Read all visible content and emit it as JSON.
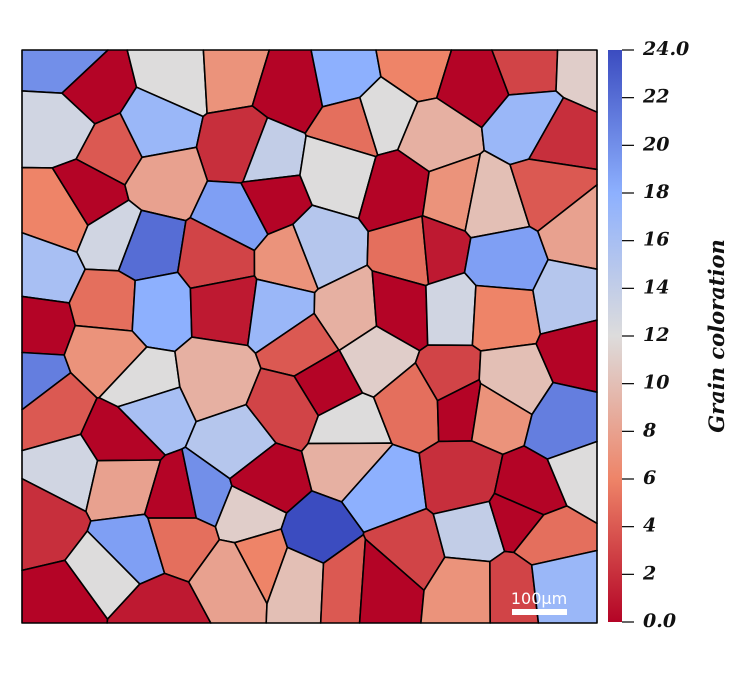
{
  "chart_data": {
    "type": "grain-map",
    "colorbar_title": "Grain coloration",
    "clim": [
      0,
      24
    ],
    "cticks": [
      {
        "value": 0,
        "label": "0.0"
      },
      2,
      4,
      6,
      8,
      10,
      12,
      14,
      16,
      18,
      20,
      22,
      {
        "value": 24,
        "label": "24.0"
      }
    ],
    "colors": [
      "#b40426",
      "#ee8468",
      "#dddcdc",
      "#8db0fe",
      "#3b4cc0"
    ],
    "scale_bar_label": "100µm",
    "grains": {
      "values": [
        20,
        0,
        12,
        7,
        0,
        18,
        6,
        0,
        3,
        11,
        13,
        4,
        17,
        2,
        14,
        5,
        12,
        9,
        17,
        2,
        6,
        0,
        8,
        19,
        0,
        12,
        0,
        7,
        10,
        4,
        16,
        13,
        22,
        3,
        7,
        15,
        5,
        1,
        19,
        8,
        0,
        5,
        18,
        1,
        17,
        9,
        0,
        13,
        6,
        15,
        21,
        7,
        12,
        9,
        4,
        0,
        11,
        3,
        10,
        0,
        4,
        0,
        16,
        15,
        3,
        12,
        5,
        0,
        7,
        21,
        13,
        8,
        0,
        20,
        0,
        9,
        18,
        2,
        0,
        12,
        2,
        19,
        5,
        11,
        6,
        24,
        3,
        14,
        0,
        5,
        0,
        12,
        1,
        8,
        10,
        4,
        0,
        7,
        3,
        17
      ]
    }
  }
}
